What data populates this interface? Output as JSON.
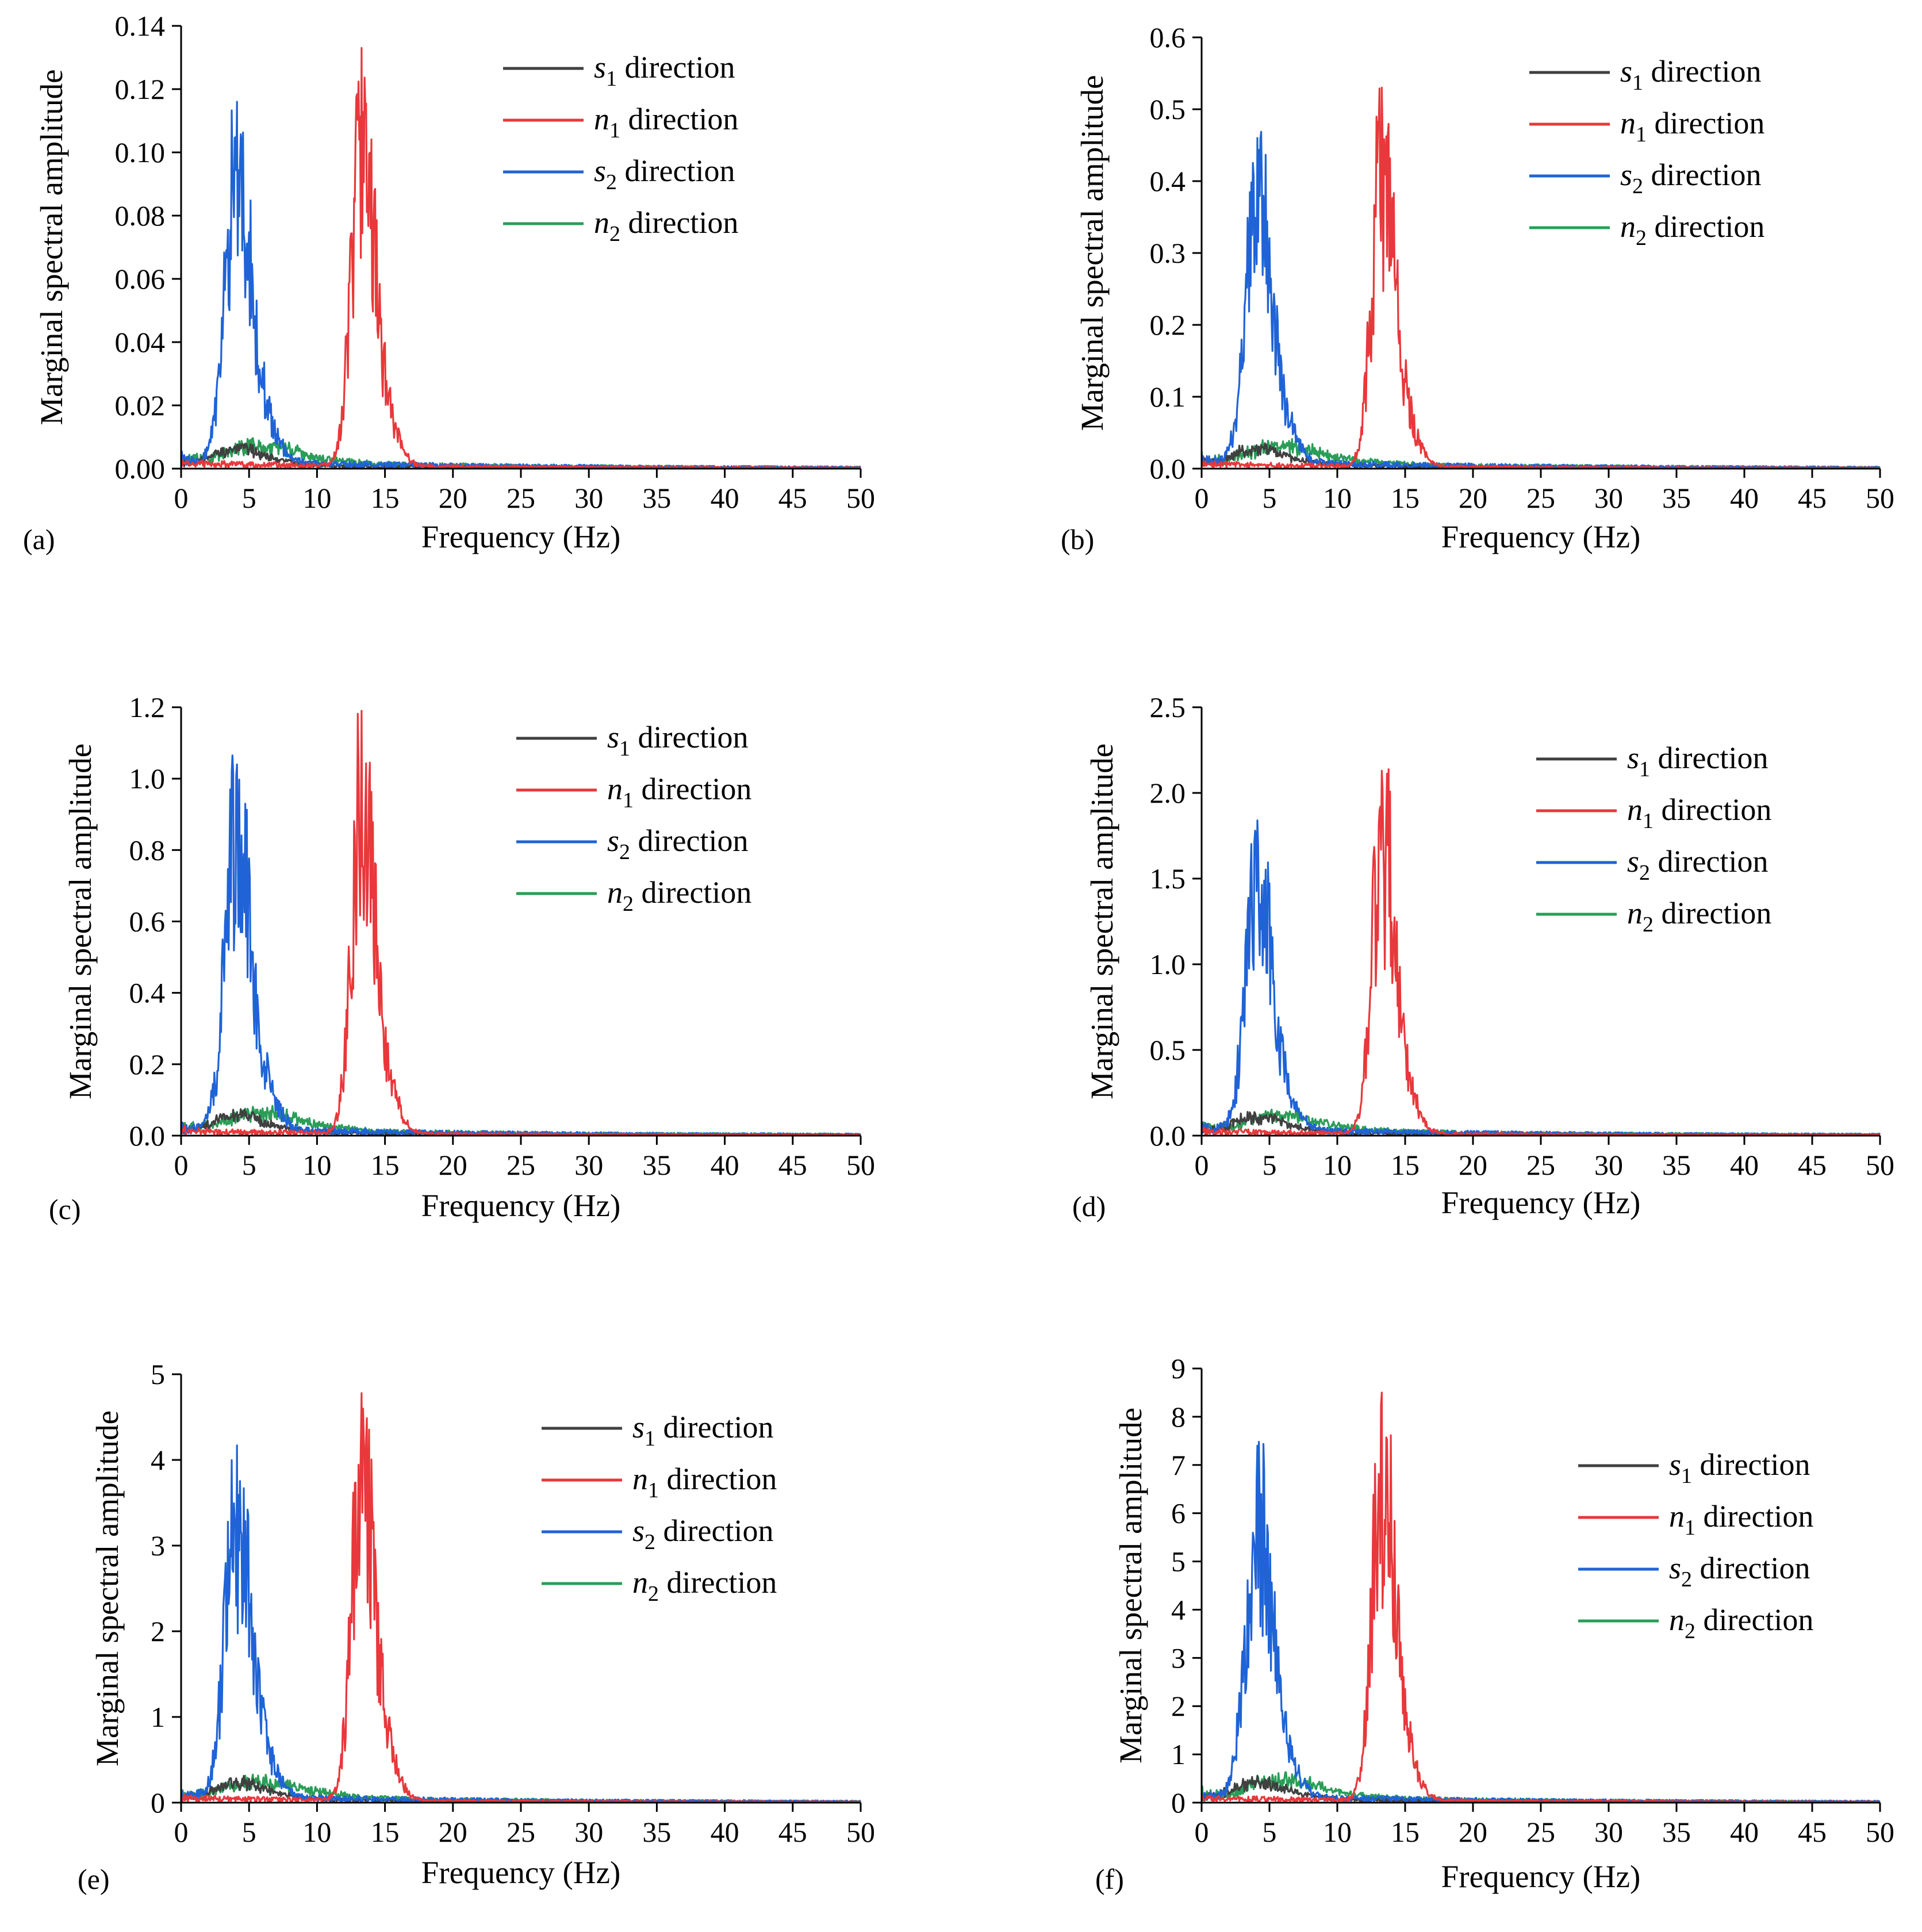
{
  "figure": {
    "panels": [
      "a",
      "b",
      "c",
      "d",
      "e",
      "f"
    ]
  },
  "chart_data": [
    {
      "type": "line",
      "panel_label": "(a)",
      "xlabel": "Frequency (Hz)",
      "ylabel": "Marginal spectral amplitude",
      "xlim": [
        0,
        50
      ],
      "ylim": [
        0,
        0.14
      ],
      "x_ticks": [
        "0",
        "5",
        "10",
        "15",
        "20",
        "25",
        "30",
        "35",
        "40",
        "45",
        "50"
      ],
      "y_ticks": [
        "0.00",
        "0.02",
        "0.04",
        "0.06",
        "0.08",
        "0.10",
        "0.12",
        "0.14"
      ],
      "legend_position": "top-center",
      "series": [
        {
          "name": "s1 direction",
          "var": "s",
          "sub": "1",
          "suffix": " direction",
          "color": "#404040",
          "peak_x": 4.0,
          "peak_y": 0.007,
          "spread": 1.6,
          "baseline": 0.0006
        },
        {
          "name": "n1 direction",
          "var": "n",
          "sub": "1",
          "suffix": " direction",
          "color": "#e8383b",
          "peak_x": 13.3,
          "peak_y": 0.133,
          "spread": 0.75,
          "baseline": 0.0008
        },
        {
          "name": "s2 direction",
          "var": "s",
          "sub": "2",
          "suffix": " direction",
          "color": "#1f63d6",
          "peak_x": 4.1,
          "peak_y": 0.116,
          "spread": 0.85,
          "baseline": 0.0012
        },
        {
          "name": "n2 direction",
          "var": "n",
          "sub": "2",
          "suffix": " direction",
          "color": "#2a9d57",
          "peak_x": 5.8,
          "peak_y": 0.007,
          "spread": 2.2,
          "baseline": 0.0012
        }
      ]
    },
    {
      "type": "line",
      "panel_label": "(b)",
      "xlabel": "Frequency (Hz)",
      "ylabel": "Marginal spectral amplitude",
      "xlim": [
        0,
        50
      ],
      "ylim": [
        0,
        0.6
      ],
      "x_ticks": [
        "0",
        "5",
        "10",
        "15",
        "20",
        "25",
        "30",
        "35",
        "40",
        "45",
        "50"
      ],
      "y_ticks": [
        "0.0",
        "0.1",
        "0.2",
        "0.3",
        "0.4",
        "0.5",
        "0.6"
      ],
      "legend_position": "top-right",
      "series": [
        {
          "name": "s1 direction",
          "var": "s",
          "sub": "1",
          "suffix": " direction",
          "color": "#404040",
          "peak_x": 4.0,
          "peak_y": 0.03,
          "spread": 1.6,
          "baseline": 0.003
        },
        {
          "name": "n1 direction",
          "var": "n",
          "sub": "1",
          "suffix": " direction",
          "color": "#e8383b",
          "peak_x": 13.3,
          "peak_y": 0.53,
          "spread": 0.75,
          "baseline": 0.003
        },
        {
          "name": "s2 direction",
          "var": "s",
          "sub": "2",
          "suffix": " direction",
          "color": "#1f63d6",
          "peak_x": 4.1,
          "peak_y": 0.46,
          "spread": 0.85,
          "baseline": 0.005
        },
        {
          "name": "n2 direction",
          "var": "n",
          "sub": "2",
          "suffix": " direction",
          "color": "#2a9d57",
          "peak_x": 5.8,
          "peak_y": 0.03,
          "spread": 2.2,
          "baseline": 0.005
        }
      ]
    },
    {
      "type": "line",
      "panel_label": "(c)",
      "xlabel": "Frequency (Hz)",
      "ylabel": "Marginal spectral amplitude",
      "xlim": [
        0,
        50
      ],
      "ylim": [
        0,
        1.2
      ],
      "x_ticks": [
        "0",
        "5",
        "10",
        "15",
        "20",
        "25",
        "30",
        "35",
        "40",
        "45",
        "50"
      ],
      "y_ticks": [
        "0.0",
        "0.2",
        "0.4",
        "0.6",
        "0.8",
        "1.0",
        "1.2"
      ],
      "legend_position": "top-center",
      "series": [
        {
          "name": "s1 direction",
          "var": "s",
          "sub": "1",
          "suffix": " direction",
          "color": "#404040",
          "peak_x": 4.0,
          "peak_y": 0.06,
          "spread": 1.6,
          "baseline": 0.006
        },
        {
          "name": "n1 direction",
          "var": "n",
          "sub": "1",
          "suffix": " direction",
          "color": "#e8383b",
          "peak_x": 13.3,
          "peak_y": 1.19,
          "spread": 0.75,
          "baseline": 0.006
        },
        {
          "name": "s2 direction",
          "var": "s",
          "sub": "2",
          "suffix": " direction",
          "color": "#1f63d6",
          "peak_x": 4.1,
          "peak_y": 1.04,
          "spread": 0.85,
          "baseline": 0.01
        },
        {
          "name": "n2 direction",
          "var": "n",
          "sub": "2",
          "suffix": " direction",
          "color": "#2a9d57",
          "peak_x": 5.8,
          "peak_y": 0.06,
          "spread": 2.2,
          "baseline": 0.01
        }
      ]
    },
    {
      "type": "line",
      "panel_label": "(d)",
      "xlabel": "Frequency (Hz)",
      "ylabel": "Marginal spectral amplitude",
      "xlim": [
        0,
        50
      ],
      "ylim": [
        0,
        2.5
      ],
      "x_ticks": [
        "0",
        "5",
        "10",
        "15",
        "20",
        "25",
        "30",
        "35",
        "40",
        "45",
        "50"
      ],
      "y_ticks": [
        "0.0",
        "0.5",
        "1.0",
        "1.5",
        "2.0",
        "2.5"
      ],
      "legend_position": "top-right",
      "series": [
        {
          "name": "s1 direction",
          "var": "s",
          "sub": "1",
          "suffix": " direction",
          "color": "#404040",
          "peak_x": 4.0,
          "peak_y": 0.11,
          "spread": 1.6,
          "baseline": 0.012
        },
        {
          "name": "n1 direction",
          "var": "n",
          "sub": "1",
          "suffix": " direction",
          "color": "#e8383b",
          "peak_x": 13.3,
          "peak_y": 2.13,
          "spread": 0.75,
          "baseline": 0.012
        },
        {
          "name": "s2 direction",
          "var": "s",
          "sub": "2",
          "suffix": " direction",
          "color": "#1f63d6",
          "peak_x": 4.1,
          "peak_y": 1.84,
          "spread": 0.85,
          "baseline": 0.02
        },
        {
          "name": "n2 direction",
          "var": "n",
          "sub": "2",
          "suffix": " direction",
          "color": "#2a9d57",
          "peak_x": 5.8,
          "peak_y": 0.11,
          "spread": 2.2,
          "baseline": 0.02
        }
      ]
    },
    {
      "type": "line",
      "panel_label": "(e)",
      "xlabel": "Frequency (Hz)",
      "ylabel": "Marginal spectral amplitude",
      "xlim": [
        0,
        50
      ],
      "ylim": [
        0,
        5
      ],
      "x_ticks": [
        "0",
        "5",
        "10",
        "15",
        "20",
        "25",
        "30",
        "35",
        "40",
        "45",
        "50"
      ],
      "y_ticks": [
        "0",
        "1",
        "2",
        "3",
        "4",
        "5"
      ],
      "legend_position": "top-center",
      "series": [
        {
          "name": "s1 direction",
          "var": "s",
          "sub": "1",
          "suffix": " direction",
          "color": "#404040",
          "peak_x": 4.0,
          "peak_y": 0.25,
          "spread": 1.6,
          "baseline": 0.025
        },
        {
          "name": "n1 direction",
          "var": "n",
          "sub": "1",
          "suffix": " direction",
          "color": "#e8383b",
          "peak_x": 13.3,
          "peak_y": 4.78,
          "spread": 0.75,
          "baseline": 0.025
        },
        {
          "name": "s2 direction",
          "var": "s",
          "sub": "2",
          "suffix": " direction",
          "color": "#1f63d6",
          "peak_x": 4.1,
          "peak_y": 4.17,
          "spread": 0.85,
          "baseline": 0.04
        },
        {
          "name": "n2 direction",
          "var": "n",
          "sub": "2",
          "suffix": " direction",
          "color": "#2a9d57",
          "peak_x": 5.8,
          "peak_y": 0.25,
          "spread": 2.2,
          "baseline": 0.04
        }
      ]
    },
    {
      "type": "line",
      "panel_label": "(f)",
      "xlabel": "Frequency (Hz)",
      "ylabel": "Marginal spectral amplitude",
      "xlim": [
        0,
        50
      ],
      "ylim": [
        0,
        9
      ],
      "x_ticks": [
        "0",
        "5",
        "10",
        "15",
        "20",
        "25",
        "30",
        "35",
        "40",
        "45",
        "50"
      ],
      "y_ticks": [
        "0",
        "1",
        "2",
        "3",
        "4",
        "5",
        "6",
        "7",
        "8",
        "9"
      ],
      "legend_position": "right",
      "series": [
        {
          "name": "s1 direction",
          "var": "s",
          "sub": "1",
          "suffix": " direction",
          "color": "#404040",
          "peak_x": 4.0,
          "peak_y": 0.45,
          "spread": 1.6,
          "baseline": 0.045
        },
        {
          "name": "n1 direction",
          "var": "n",
          "sub": "1",
          "suffix": " direction",
          "color": "#e8383b",
          "peak_x": 13.3,
          "peak_y": 8.5,
          "spread": 0.75,
          "baseline": 0.045
        },
        {
          "name": "s2 direction",
          "var": "s",
          "sub": "2",
          "suffix": " direction",
          "color": "#1f63d6",
          "peak_x": 4.1,
          "peak_y": 7.4,
          "spread": 0.85,
          "baseline": 0.07
        },
        {
          "name": "n2 direction",
          "var": "n",
          "sub": "2",
          "suffix": " direction",
          "color": "#2a9d57",
          "peak_x": 5.8,
          "peak_y": 0.45,
          "spread": 2.2,
          "baseline": 0.07
        }
      ]
    }
  ]
}
